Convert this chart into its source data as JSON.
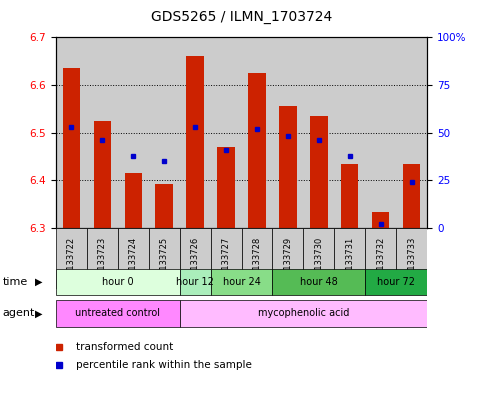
{
  "title": "GDS5265 / ILMN_1703724",
  "samples": [
    "GSM1133722",
    "GSM1133723",
    "GSM1133724",
    "GSM1133725",
    "GSM1133726",
    "GSM1133727",
    "GSM1133728",
    "GSM1133729",
    "GSM1133730",
    "GSM1133731",
    "GSM1133732",
    "GSM1133733"
  ],
  "bar_bottoms": [
    6.3,
    6.3,
    6.3,
    6.3,
    6.3,
    6.3,
    6.3,
    6.3,
    6.3,
    6.3,
    6.3,
    6.3
  ],
  "bar_tops": [
    6.635,
    6.525,
    6.415,
    6.392,
    6.66,
    6.47,
    6.625,
    6.555,
    6.535,
    6.435,
    6.333,
    6.435
  ],
  "percentile_vals": [
    53,
    46,
    38,
    35,
    53,
    41,
    52,
    48,
    46,
    38,
    2,
    24
  ],
  "ylim": [
    6.3,
    6.7
  ],
  "yticks": [
    6.3,
    6.4,
    6.5,
    6.6,
    6.7
  ],
  "right_yticks": [
    0,
    25,
    50,
    75,
    100
  ],
  "bar_color": "#cc2200",
  "percentile_color": "#0000cc",
  "grid_color": "#000000",
  "time_groups": [
    {
      "label": "hour 0",
      "start": 0,
      "end": 4,
      "color": "#ddffdd"
    },
    {
      "label": "hour 12",
      "start": 4,
      "end": 5,
      "color": "#aaeebb"
    },
    {
      "label": "hour 24",
      "start": 5,
      "end": 7,
      "color": "#88dd88"
    },
    {
      "label": "hour 48",
      "start": 7,
      "end": 10,
      "color": "#55bb55"
    },
    {
      "label": "hour 72",
      "start": 10,
      "end": 12,
      "color": "#22aa44"
    }
  ],
  "agent_groups": [
    {
      "label": "untreated control",
      "start": 0,
      "end": 4,
      "color": "#ff88ff"
    },
    {
      "label": "mycophenolic acid",
      "start": 4,
      "end": 12,
      "color": "#ffbbff"
    }
  ],
  "legend_items": [
    {
      "label": "transformed count",
      "color": "#cc2200"
    },
    {
      "label": "percentile rank within the sample",
      "color": "#0000cc"
    }
  ],
  "sample_bg": "#cccccc",
  "bar_width": 0.55
}
